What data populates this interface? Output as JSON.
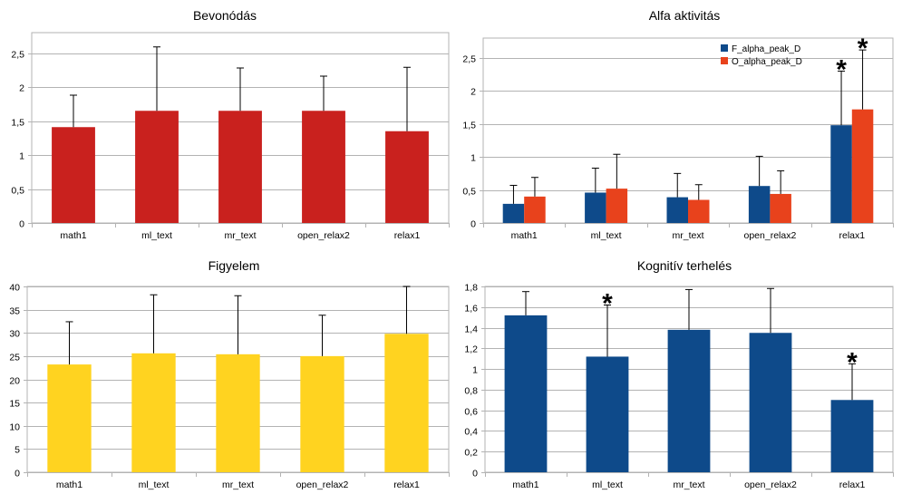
{
  "chart_data": [
    {
      "type": "bar",
      "title": "Bevonódás",
      "categories": [
        "math1",
        "ml_text",
        "mr_text",
        "open_relax2",
        "relax1"
      ],
      "series": [
        {
          "values": [
            1.41,
            1.65,
            1.65,
            1.65,
            1.35
          ],
          "errors": [
            0.47,
            0.94,
            0.63,
            0.51,
            0.94
          ],
          "color": "#c9211e"
        }
      ],
      "ylim": [
        0,
        2.8
      ],
      "yticks": [
        "0",
        "0,5",
        "1",
        "1,5",
        "2",
        "2,5"
      ],
      "grid": true,
      "legend": null,
      "annotations": []
    },
    {
      "type": "bar",
      "title": "Alfa aktivitás",
      "categories": [
        "math1",
        "ml_text",
        "mr_text",
        "open_relax2",
        "relax1"
      ],
      "series": [
        {
          "name": "F_alpha_peak_D",
          "values": [
            0.29,
            0.46,
            0.39,
            0.56,
            1.48
          ],
          "errors": [
            0.28,
            0.37,
            0.36,
            0.45,
            0.82
          ],
          "color": "#0e4a8a"
        },
        {
          "name": "O_alpha_peak_D",
          "values": [
            0.4,
            0.52,
            0.35,
            0.44,
            1.72
          ],
          "errors": [
            0.29,
            0.52,
            0.23,
            0.35,
            0.9
          ],
          "color": "#e8421c"
        }
      ],
      "ylim": [
        0,
        2.8
      ],
      "yticks": [
        "0",
        "0,5",
        "1",
        "1,5",
        "2",
        "2,5"
      ],
      "grid": true,
      "legend": "top-right",
      "annotations": [
        {
          "text": "*",
          "category": 4,
          "series": 0
        },
        {
          "text": "*",
          "category": 4,
          "series": 1
        }
      ]
    },
    {
      "type": "bar",
      "title": "Figyelem",
      "categories": [
        "math1",
        "ml_text",
        "mr_text",
        "open_relax2",
        "relax1"
      ],
      "series": [
        {
          "values": [
            23.2,
            25.6,
            25.4,
            25.0,
            29.8
          ],
          "errors": [
            9.2,
            12.6,
            12.6,
            8.8,
            10.2
          ],
          "color": "#ffd320"
        }
      ],
      "ylim": [
        0,
        40
      ],
      "yticks": [
        "0",
        "5",
        "10",
        "15",
        "20",
        "25",
        "30",
        "35",
        "40"
      ],
      "grid": true,
      "legend": null,
      "annotations": []
    },
    {
      "type": "bar",
      "title": "Kognitív terhelés",
      "categories": [
        "math1",
        "ml_text",
        "mr_text",
        "open_relax2",
        "relax1"
      ],
      "series": [
        {
          "values": [
            1.52,
            1.12,
            1.38,
            1.35,
            0.7
          ],
          "errors": [
            0.23,
            0.5,
            0.39,
            0.43,
            0.35
          ],
          "color": "#0e4a8a"
        }
      ],
      "ylim": [
        0,
        1.8
      ],
      "yticks": [
        "0",
        "0,2",
        "0,4",
        "0,6",
        "0,8",
        "1",
        "1,2",
        "1,4",
        "1,6",
        "1,8"
      ],
      "grid": true,
      "legend": null,
      "annotations": [
        {
          "text": "*",
          "category": 1,
          "series": 0
        },
        {
          "text": "*",
          "category": 4,
          "series": 0
        }
      ]
    }
  ]
}
